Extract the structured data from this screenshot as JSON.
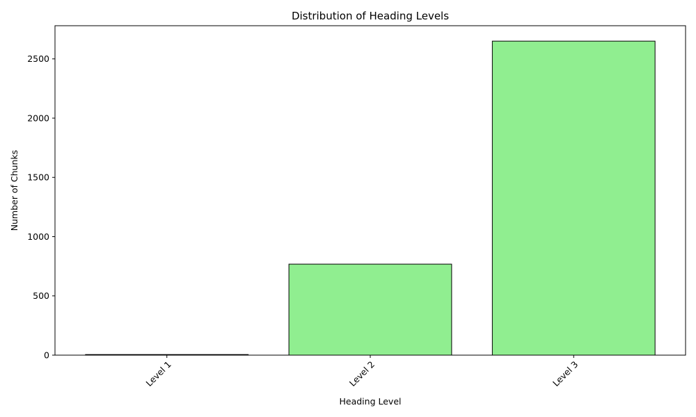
{
  "chart_data": {
    "type": "bar",
    "title": "Distribution of Heading Levels",
    "xlabel": "Heading Level",
    "ylabel": "Number of Chunks",
    "categories": [
      "Level 1",
      "Level 2",
      "Level 3"
    ],
    "values": [
      5,
      768,
      2650
    ],
    "ylim": [
      0,
      2780
    ],
    "yticks": [
      0,
      500,
      1000,
      1500,
      2000,
      2500
    ],
    "grid": false,
    "bar_color": "#90EE90",
    "edge_color": "#000000"
  }
}
